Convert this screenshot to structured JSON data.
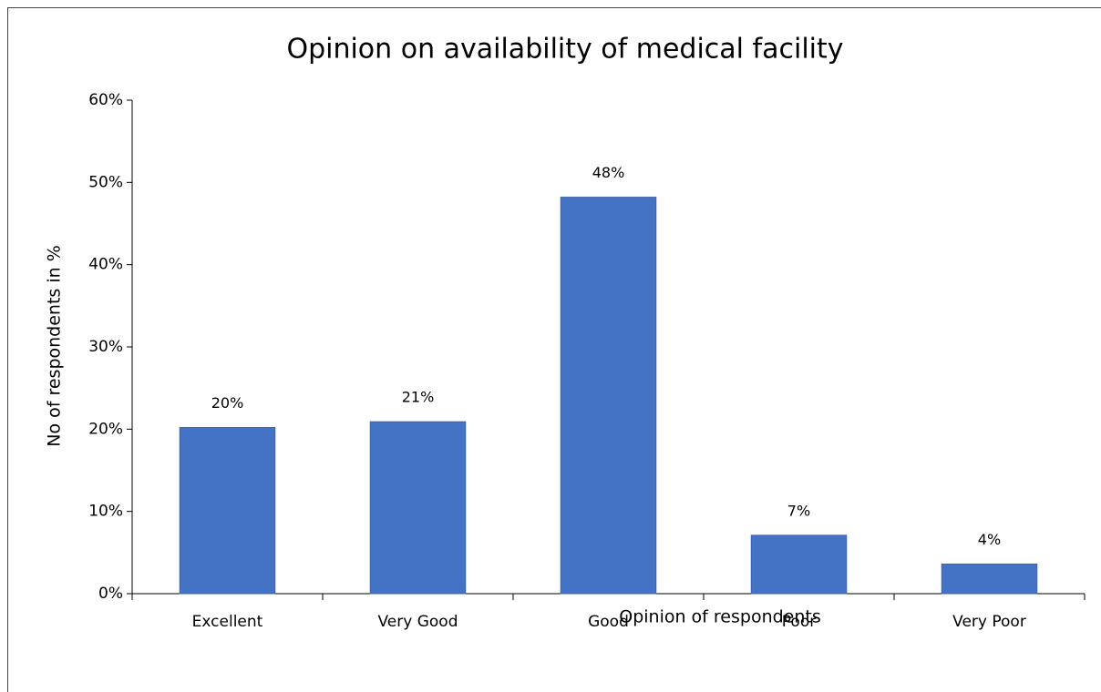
{
  "chart_data": {
    "type": "bar",
    "title": "Opinion on availability of medical facility",
    "x_label": "Opinion of respondents",
    "y_label": "No of respondents in %",
    "categories": [
      "Excellent",
      "Very Good",
      "Good",
      "Poor",
      "Very Poor"
    ],
    "values": [
      20.2,
      20.9,
      48.2,
      7.1,
      3.6
    ],
    "value_labels": [
      "20%",
      "21%",
      "48%",
      "7%",
      "4%"
    ],
    "color": "#4472c4",
    "ylim": [
      0,
      60
    ],
    "yticks": [
      {
        "value": 0,
        "label": "0%"
      },
      {
        "value": 10,
        "label": "10%"
      },
      {
        "value": 20,
        "label": "20%"
      },
      {
        "value": 30,
        "label": "30%"
      },
      {
        "value": 40,
        "label": "40%"
      },
      {
        "value": 50,
        "label": "50%"
      },
      {
        "value": 60,
        "label": "60%"
      }
    ],
    "grid": false
  }
}
